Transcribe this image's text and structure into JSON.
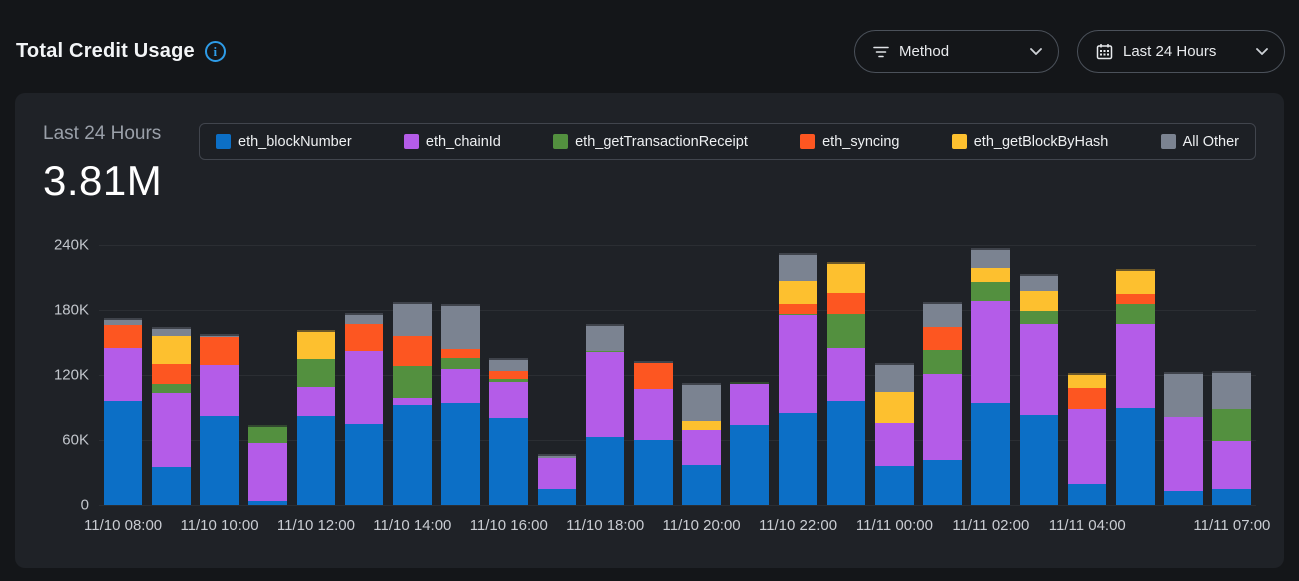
{
  "header": {
    "title": "Total Credit Usage",
    "controls": {
      "method_dropdown": "Method",
      "time_range_dropdown": "Last 24 Hours"
    }
  },
  "summary": {
    "period_label": "Last 24 Hours",
    "total": "3.81M"
  },
  "colors": {
    "page_background": "#141619",
    "card_background": "#1f2227",
    "accent_blue": "#2e9ce8"
  },
  "chart_data": {
    "type": "bar",
    "stacked": true,
    "title": "Total Credit Usage",
    "ylim": [
      0,
      240000
    ],
    "grid": true,
    "legend_position": "top",
    "y_ticks": [
      {
        "value": 240000,
        "label": "240K"
      },
      {
        "value": 180000,
        "label": "180K"
      },
      {
        "value": 120000,
        "label": "120K"
      },
      {
        "value": 60000,
        "label": "60K"
      },
      {
        "value": 0,
        "label": "0"
      }
    ],
    "categories": [
      "11/10 08:00",
      "11/10 09:00",
      "11/10 10:00",
      "11/10 11:00",
      "11/10 12:00",
      "11/10 13:00",
      "11/10 14:00",
      "11/10 15:00",
      "11/10 16:00",
      "11/10 17:00",
      "11/10 18:00",
      "11/10 19:00",
      "11/10 20:00",
      "11/10 21:00",
      "11/10 22:00",
      "11/10 23:00",
      "11/11 00:00",
      "11/11 01:00",
      "11/11 02:00",
      "11/11 03:00",
      "11/11 04:00",
      "11/11 05:00",
      "11/11 06:00",
      "11/11 07:00"
    ],
    "x_ticks": [
      {
        "slot": 0,
        "label": "11/10 08:00"
      },
      {
        "slot": 2,
        "label": "11/10 10:00"
      },
      {
        "slot": 4,
        "label": "11/10 12:00"
      },
      {
        "slot": 6,
        "label": "11/10 14:00"
      },
      {
        "slot": 8,
        "label": "11/10 16:00"
      },
      {
        "slot": 10,
        "label": "11/10 18:00"
      },
      {
        "slot": 12,
        "label": "11/10 20:00"
      },
      {
        "slot": 14,
        "label": "11/10 22:00"
      },
      {
        "slot": 16,
        "label": "11/11 00:00"
      },
      {
        "slot": 18,
        "label": "11/11 02:00"
      },
      {
        "slot": 20,
        "label": "11/11 04:00"
      },
      {
        "slot": 23,
        "label": "11/11 07:00"
      }
    ],
    "series": [
      {
        "name": "eth_blockNumber",
        "color": "#0c6fc6",
        "values": [
          96000,
          35000,
          82000,
          4000,
          82000,
          75000,
          92000,
          94000,
          80000,
          15000,
          63000,
          60000,
          37000,
          74000,
          85000,
          96000,
          36000,
          42000,
          94000,
          83000,
          19000,
          90000,
          13000,
          15000
        ]
      },
      {
        "name": "eth_chainId",
        "color": "#b45ce8",
        "values": [
          49000,
          68000,
          47000,
          53000,
          27000,
          67000,
          7000,
          32000,
          34000,
          28000,
          78000,
          47000,
          32000,
          38000,
          90000,
          49000,
          40000,
          79000,
          94000,
          84000,
          70000,
          77000,
          68000,
          44000
        ]
      },
      {
        "name": "eth_getTransactionReceipt",
        "color": "#53903f",
        "values": [
          0,
          9000,
          0,
          17000,
          26000,
          0,
          29000,
          10000,
          2000,
          0,
          1000,
          0,
          0,
          1000,
          1000,
          31000,
          0,
          22000,
          18000,
          12000,
          0,
          19000,
          0,
          30000
        ]
      },
      {
        "name": "eth_syncing",
        "color": "#fd5621",
        "values": [
          21000,
          18000,
          26000,
          0,
          0,
          25000,
          28000,
          8000,
          8000,
          0,
          0,
          24000,
          0,
          0,
          10000,
          20000,
          0,
          21000,
          0,
          0,
          19000,
          9000,
          0,
          0
        ]
      },
      {
        "name": "eth_getBlockByHash",
        "color": "#fdc02f",
        "values": [
          0,
          26000,
          0,
          0,
          27000,
          0,
          0,
          0,
          0,
          0,
          0,
          0,
          9000,
          0,
          21000,
          28000,
          28000,
          0,
          13000,
          19000,
          14000,
          23000,
          0,
          0
        ]
      },
      {
        "name": "All Other",
        "color": "#7b8391",
        "values": [
          7000,
          8000,
          3000,
          0,
          0,
          10000,
          31000,
          42000,
          12000,
          4000,
          25000,
          1000,
          35000,
          0,
          26000,
          0,
          27000,
          23000,
          18000,
          15000,
          0,
          0,
          42000,
          35000
        ]
      }
    ]
  }
}
